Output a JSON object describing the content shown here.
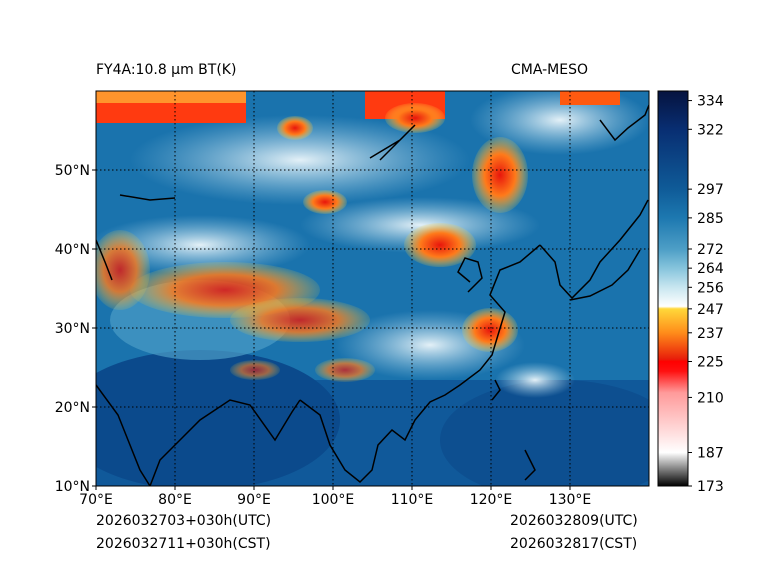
{
  "header": {
    "left_title": "FY4A:10.8 µm BT(K)",
    "right_title": "CMA-MESO"
  },
  "footer": {
    "init_utc": "2026032703+030h(UTC)",
    "init_cst": "2026032711+030h(CST)",
    "valid_utc": "2026032809(UTC)",
    "valid_cst": "2026032817(CST)"
  },
  "map": {
    "lon_range": [
      70,
      140
    ],
    "lat_range": [
      10,
      60
    ],
    "lon_labels": [
      "70°E",
      "80°E",
      "90°E",
      "100°E",
      "110°E",
      "120°E",
      "130°E"
    ],
    "lat_labels": [
      "10°N",
      "20°N",
      "30°N",
      "40°N",
      "50°N"
    ],
    "lon_ticks": [
      70,
      80,
      90,
      100,
      110,
      120,
      130
    ],
    "lat_ticks": [
      10,
      20,
      30,
      40,
      50
    ]
  },
  "colorbar": {
    "vmin": 173,
    "vmax": 338,
    "tick_values": [
      173,
      187,
      210,
      225,
      237,
      247,
      256,
      264,
      272,
      285,
      297,
      322,
      334
    ],
    "tick_labels": [
      "173",
      "187",
      "210",
      "225",
      "237",
      "247",
      "256",
      "264",
      "272",
      "285",
      "297",
      "322",
      "334"
    ],
    "stops": [
      {
        "value": 173,
        "color": "#000000"
      },
      {
        "value": 187,
        "color": "#ffffff"
      },
      {
        "value": 212,
        "color": "#ff9a9a"
      },
      {
        "value": 221,
        "color": "#ff1010"
      },
      {
        "value": 225,
        "color": "#ff0000"
      },
      {
        "value": 226,
        "color": "#e81e0a"
      },
      {
        "value": 237,
        "color": "#ff8c1a"
      },
      {
        "value": 247,
        "color": "#ffd83a"
      },
      {
        "value": 248,
        "color": "#ffffff"
      },
      {
        "value": 256,
        "color": "#c8e6f0"
      },
      {
        "value": 264,
        "color": "#86c4dc"
      },
      {
        "value": 272,
        "color": "#4d9ec6"
      },
      {
        "value": 285,
        "color": "#1d78b0"
      },
      {
        "value": 297,
        "color": "#0f5b98"
      },
      {
        "value": 322,
        "color": "#082e72"
      },
      {
        "value": 338,
        "color": "#06133f"
      }
    ]
  }
}
